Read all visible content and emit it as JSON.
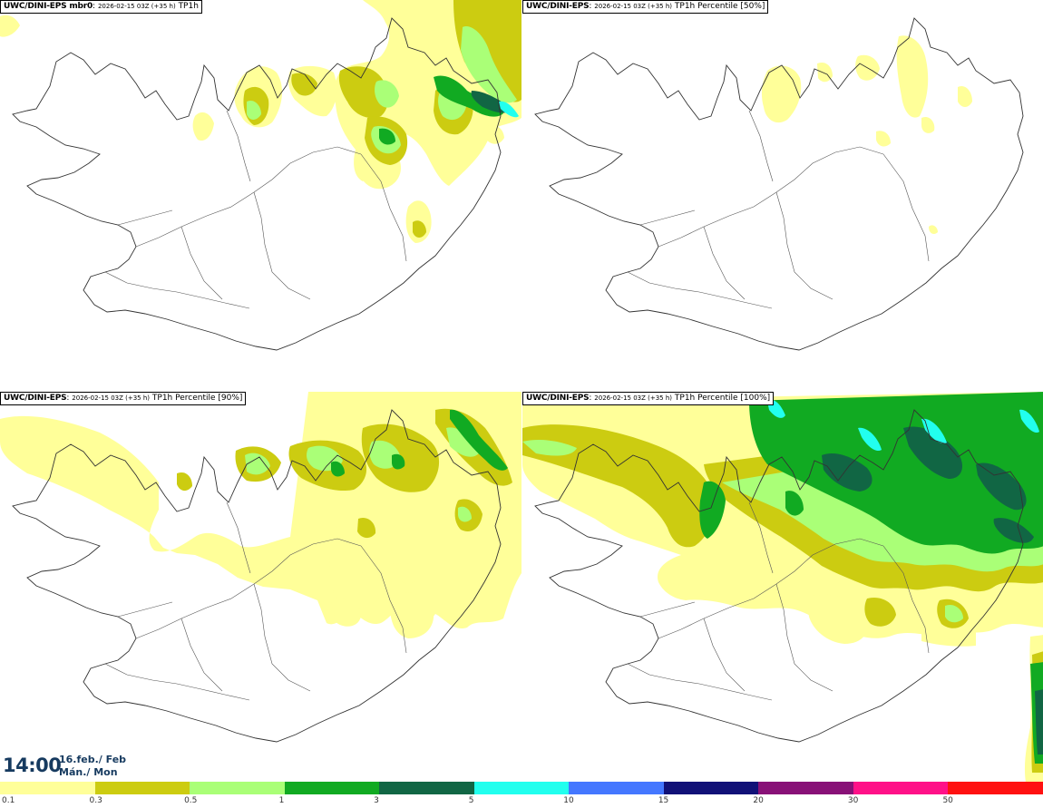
{
  "panels": [
    {
      "model": "UWC/DINI-EPS mbr0",
      "run": "2026-02-15 03Z (+35 h)",
      "param": "TP1h"
    },
    {
      "model": "UWC/DINI-EPS",
      "run": "2026-02-15 03Z (+35 h)",
      "param": "TP1h Percentile [50%]"
    },
    {
      "model": "UWC/DINI-EPS",
      "run": "2026-02-15 03Z (+35 h)",
      "param": "TP1h Percentile [90%]"
    },
    {
      "model": "UWC/DINI-EPS",
      "run": "2026-02-15 03Z (+35 h)",
      "param": "TP1h Percentile [100%]"
    }
  ],
  "valid_time": {
    "time": "14:00",
    "date_line1": "16.feb./ Feb",
    "date_line2": "Mán./ Mon"
  },
  "colorbar": {
    "labels": [
      "0.1",
      "0.3",
      "0.5",
      "1",
      "3",
      "5",
      "10",
      "15",
      "20",
      "30",
      "50"
    ],
    "colors": [
      "#ffff99",
      "#cccc11",
      "#aaff77",
      "#11aa22",
      "#116644",
      "#22ffee",
      "#4477ff",
      "#111177",
      "#881177",
      "#ff1188",
      "#ff1111"
    ]
  },
  "levels": {
    "c1": "#ffff99",
    "c2": "#cccc11",
    "c3": "#aaff77",
    "c4": "#11aa22",
    "c5": "#116644",
    "c6": "#22ffee"
  }
}
